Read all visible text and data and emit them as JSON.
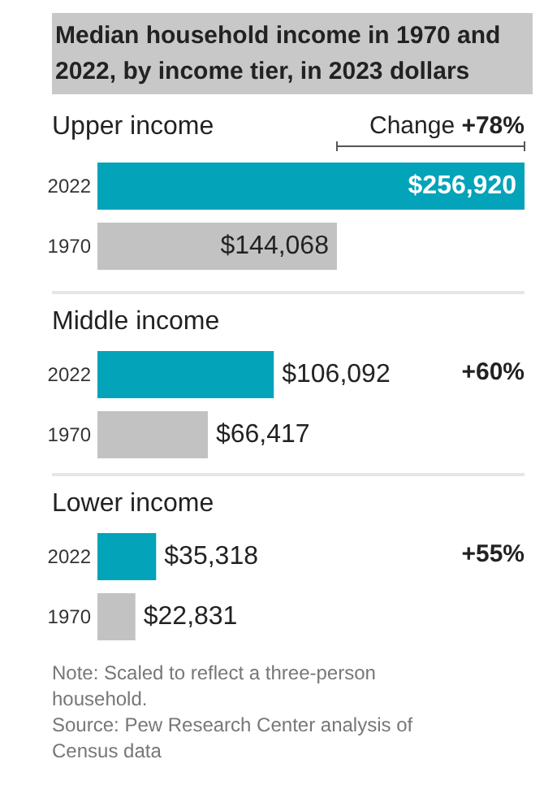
{
  "chart_data": [
    {
      "type": "bar",
      "orientation": "horizontal",
      "title": "Median household income in 1970 and 2022, by income tier, in 2023 dollars",
      "subtitle": "Upper income",
      "categories": [
        "2022",
        "1970"
      ],
      "values": [
        256920,
        144068
      ],
      "colors": [
        "#03a3b9",
        "#c2c2c2"
      ],
      "value_labels": [
        "$256,920",
        "$144,068"
      ],
      "annotations": [
        "Change +78%"
      ]
    },
    {
      "type": "bar",
      "orientation": "horizontal",
      "subtitle": "Middle income",
      "categories": [
        "2022",
        "1970"
      ],
      "values": [
        106092,
        66417
      ],
      "colors": [
        "#03a3b9",
        "#c2c2c2"
      ],
      "value_labels": [
        "$106,092",
        "$66,417"
      ],
      "annotations": [
        "+60%"
      ]
    },
    {
      "type": "bar",
      "orientation": "horizontal",
      "subtitle": "Lower income",
      "categories": [
        "2022",
        "1970"
      ],
      "values": [
        35318,
        22831
      ],
      "colors": [
        "#03a3b9",
        "#c2c2c2"
      ],
      "value_labels": [
        "$35,318",
        "$22,831"
      ],
      "annotations": [
        "+55%",
        "Note: Scaled to reflect a three-person household.",
        "Source: Pew Research Center analysis of Census data"
      ]
    }
  ]
}
